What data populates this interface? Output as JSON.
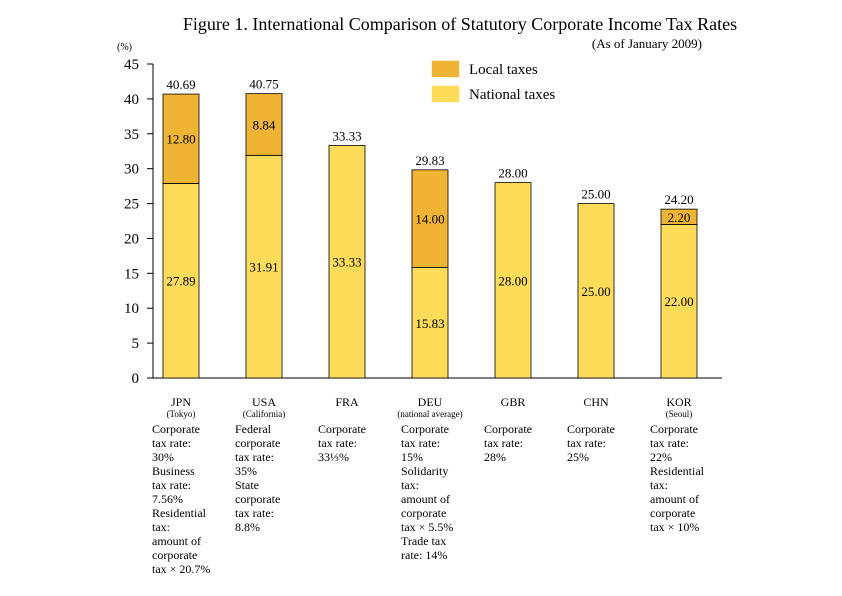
{
  "chart_data": {
    "type": "bar",
    "stacked": true,
    "title": "Figure 1. International Comparison of Statutory Corporate Income Tax Rates",
    "subtitle": "(As of January 2009)",
    "y_unit": "(%)",
    "ylim": [
      0,
      45
    ],
    "yticks": [
      0,
      5,
      10,
      15,
      20,
      25,
      30,
      35,
      40,
      45
    ],
    "grid": false,
    "legend_position": "top-right",
    "categories": [
      "JPN",
      "USA",
      "FRA",
      "DEU",
      "GBR",
      "CHN",
      "KOR"
    ],
    "category_sublabels": [
      "(Tokyo)",
      "(California)",
      "",
      "(national average)",
      "",
      "",
      "(Seoul)"
    ],
    "series": [
      {
        "name": "National taxes",
        "color": "#fedc5a",
        "values": [
          27.89,
          31.91,
          33.33,
          15.83,
          28.0,
          25.0,
          22.0
        ],
        "labels": [
          "27.89",
          "31.91",
          "33.33",
          "15.83",
          "28.00",
          "25.00",
          "22.00"
        ]
      },
      {
        "name": "Local taxes",
        "color": "#efb434",
        "values": [
          12.8,
          8.84,
          0,
          14.0,
          0,
          0,
          2.2
        ],
        "labels": [
          "12.80",
          "8.84",
          "",
          "14.00",
          "",
          "",
          "2.20"
        ]
      }
    ],
    "totals": [
      "40.69",
      "40.75",
      "33.33",
      "29.83",
      "28.00",
      "25.00",
      "24.20"
    ],
    "notes": [
      "Corporate\ntax rate:\n30%\nBusiness\ntax rate:\n7.56%\nResidential\ntax:\namount of\ncorporate\ntax × 20.7%",
      "Federal\ncorporate\ntax rate:\n35%\nState\ncorporate\ntax rate:\n8.8%",
      "Corporate\ntax rate:\n33⅓%",
      "Corporate\ntax rate:\n15%\nSolidarity\ntax:\namount of\ncorporate\ntax × 5.5%\nTrade tax\nrate: 14%",
      "Corporate\ntax rate:\n28%",
      "Corporate\ntax rate:\n25%",
      "Corporate\ntax rate:\n22%\nResidential\ntax:\namount of\ncorporate\ntax × 10%"
    ]
  }
}
